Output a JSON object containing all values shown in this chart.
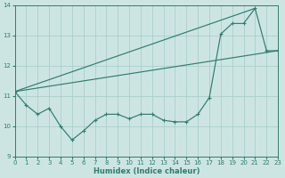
{
  "xlabel": "Humidex (Indice chaleur)",
  "xlim": [
    0,
    23
  ],
  "ylim": [
    9,
    14
  ],
  "yticks": [
    9,
    10,
    11,
    12,
    13,
    14
  ],
  "xticks": [
    0,
    1,
    2,
    3,
    4,
    5,
    6,
    7,
    8,
    9,
    10,
    11,
    12,
    13,
    14,
    15,
    16,
    17,
    18,
    19,
    20,
    21,
    22,
    23
  ],
  "bg_color": "#cce5e3",
  "line_color": "#2e7d6e",
  "grid_color": "#aacfcc",
  "line1_x": [
    0,
    1,
    2,
    3,
    4,
    5,
    6,
    7,
    8,
    9,
    10,
    11,
    12,
    13,
    14,
    15,
    16,
    17,
    18,
    19,
    20,
    21,
    22,
    23
  ],
  "line1_y": [
    11.15,
    10.7,
    10.4,
    10.6,
    10.0,
    9.55,
    9.85,
    10.2,
    10.4,
    10.4,
    10.25,
    10.4,
    10.4,
    10.2,
    10.15,
    10.15,
    10.4,
    10.95,
    13.05,
    13.4,
    13.4,
    13.9,
    12.5,
    12.5
  ],
  "line2_x": [
    0,
    23
  ],
  "line2_y": [
    11.15,
    12.5
  ],
  "line3_x": [
    0,
    21
  ],
  "line3_y": [
    11.15,
    13.9
  ],
  "xlabel_fontsize": 6,
  "tick_fontsize": 5,
  "linewidth": 0.85,
  "marker_size": 3.0
}
